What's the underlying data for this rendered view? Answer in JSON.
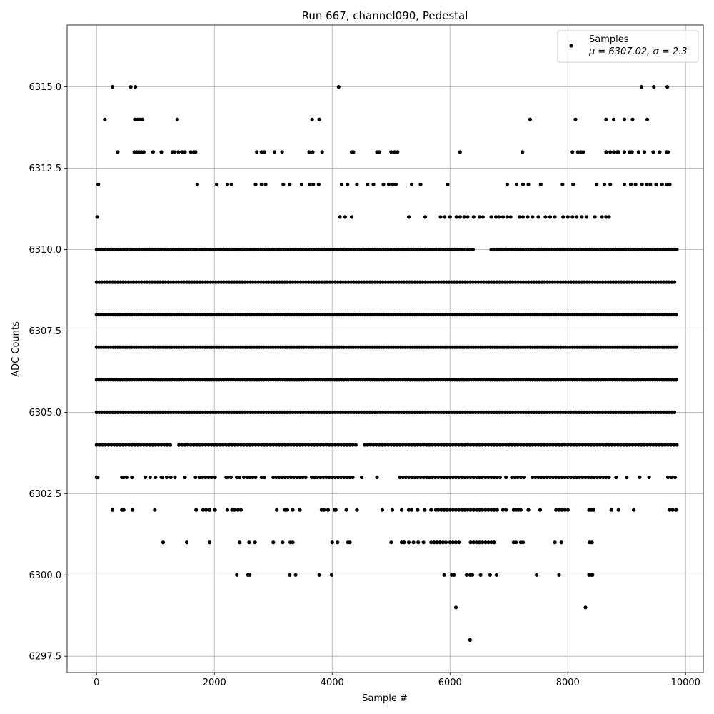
{
  "chart_data": {
    "type": "scatter",
    "title": "Run 667, channel090, Pedestal",
    "xlabel": "Sample #",
    "ylabel": "ADC Counts",
    "xlim": [
      -500,
      10300
    ],
    "ylim": [
      6297.0,
      6316.9
    ],
    "x_ticks": [
      0,
      2000,
      4000,
      6000,
      8000,
      10000
    ],
    "x_tick_labels": [
      "0",
      "2000",
      "4000",
      "6000",
      "8000",
      "10000"
    ],
    "y_ticks": [
      6297.5,
      6300.0,
      6302.5,
      6305.0,
      6307.5,
      6310.0,
      6312.5,
      6315.0
    ],
    "y_tick_labels": [
      "6297.5",
      "6300.0",
      "6302.5",
      "6305.0",
      "6307.5",
      "6310.0",
      "6312.5",
      "6315.0"
    ],
    "grid": true,
    "legend_position": "top-right",
    "point_color": "#000000",
    "series": [
      {
        "name": "Samples",
        "legend_note": "μ = 6307.02, σ = 2.3",
        "levels": [
          {
            "y": 6315,
            "x": [
              270,
              580,
              660,
              4110,
              9250,
              9460,
              9690
            ]
          },
          {
            "y": 6314,
            "x": [
              140,
              650,
              700,
              740,
              780,
              1370,
              3660,
              3780,
              7360,
              8130,
              8650,
              8780,
              8960,
              9100,
              9350
            ]
          },
          {
            "y": 6313,
            "x": [
              360,
              640,
              680,
              720,
              760,
              800,
              960,
              1100,
              1290,
              1320,
              1390,
              1450,
              1500,
              1600,
              1650,
              1680,
              2720,
              2800,
              2850,
              3020,
              3150,
              3610,
              3670,
              3830,
              4330,
              4360,
              4760,
              4800,
              5000,
              5060,
              5110,
              6170,
              7230,
              8080,
              8170,
              8220,
              8260,
              8650,
              8720,
              8780,
              8840,
              8860,
              8960,
              9050,
              9090,
              9200,
              9300,
              9450,
              9560,
              9680,
              9700
            ]
          },
          {
            "y": 6312,
            "x": [
              30,
              1710,
              2040,
              2220,
              2290,
              2700,
              2800,
              2870,
              3170,
              3280,
              3480,
              3620,
              3680,
              3770,
              4160,
              4260,
              4420,
              4600,
              4700,
              4870,
              4960,
              5030,
              5080,
              5350,
              5500,
              5960,
              6970,
              7130,
              7240,
              7330,
              7540,
              7910,
              8090,
              8490,
              8620,
              8720,
              8960,
              9070,
              9150,
              9260,
              9340,
              9400,
              9500,
              9600,
              9680,
              9730
            ]
          },
          {
            "y": 6311,
            "x": [
              10,
              4130,
              4220,
              4330,
              5300,
              5580,
              5840,
              5910,
              6000,
              6110,
              6170,
              6240,
              6300,
              6400,
              6500,
              6560,
              6700,
              6780,
              6830,
              6900,
              6970,
              7030,
              7180,
              7240,
              7320,
              7400,
              7500,
              7620,
              7700,
              7780,
              7920,
              8000,
              8080,
              8150,
              8240,
              8320,
              8460,
              8580,
              8650,
              8700
            ]
          },
          {
            "y": 6310,
            "segments": [
              [
                0,
                6400
              ],
              [
                6700,
                9850
              ]
            ],
            "step": 45
          },
          {
            "y": 6309,
            "segments": [
              [
                0,
                9850
              ]
            ],
            "step": 45
          },
          {
            "y": 6308,
            "segments": [
              [
                0,
                9850
              ]
            ],
            "step": 40
          },
          {
            "y": 6307,
            "segments": [
              [
                0,
                9850
              ]
            ],
            "step": 40
          },
          {
            "y": 6306,
            "segments": [
              [
                0,
                9850
              ]
            ],
            "step": 40
          },
          {
            "y": 6305,
            "segments": [
              [
                0,
                9850
              ]
            ],
            "step": 45
          },
          {
            "y": 6304,
            "segments": [
              [
                0,
                1250
              ],
              [
                1400,
                4400
              ],
              [
                4550,
                9850
              ]
            ],
            "step": 50
          },
          {
            "y": 6303,
            "x": [
              0,
              20,
              430,
              460,
              510,
              600,
              830,
              910,
              1000,
              1100,
              1120,
              1190,
              1260,
              1330,
              1500,
              1680,
              1750,
              1800,
              1850,
              1900,
              1950,
              2010,
              2200,
              2230,
              2280,
              2380,
              2430,
              2500,
              2560,
              2600,
              2650,
              2700,
              2800,
              2850,
              3000,
              3050,
              3100,
              3150,
              3200,
              3250,
              3300,
              3350,
              3400,
              3450,
              3500,
              3550,
              3650,
              3700,
              3750,
              3800,
              3850,
              3900,
              3950,
              4000,
              4050,
              4100,
              4150,
              4200,
              4250,
              4300,
              4350,
              4500,
              4760,
              5150,
              5200,
              5250,
              5300,
              5350,
              5400,
              5450,
              5500,
              5550,
              5600,
              5650,
              5700,
              5750,
              5800,
              5850,
              5900,
              5950,
              6000,
              6050,
              6100,
              6150,
              6200,
              6250,
              6300,
              6350,
              6400,
              6450,
              6500,
              6550,
              6600,
              6650,
              6700,
              6750,
              6800,
              6850,
              6950,
              7050,
              7100,
              7150,
              7200,
              7250,
              7400,
              7450,
              7500,
              7550,
              7600,
              7650,
              7700,
              7750,
              7800,
              7850,
              7900,
              7950,
              8000,
              8050,
              8100,
              8150,
              8200,
              8250,
              8300,
              8350,
              8400,
              8450,
              8500,
              8550,
              8600,
              8650,
              8700,
              8820,
              9000,
              9220,
              9380,
              9700,
              9760,
              9820
            ]
          },
          {
            "y": 6302,
            "x": [
              270,
              430,
              460,
              610,
              990,
              1690,
              1810,
              1860,
              1920,
              2010,
              2220,
              2300,
              2340,
              2400,
              2450,
              3060,
              3200,
              3240,
              3330,
              3450,
              3820,
              3860,
              3930,
              4040,
              4060,
              4240,
              4420,
              4850,
              5020,
              5180,
              5300,
              5350,
              5450,
              5570,
              5680,
              5760,
              5800,
              5850,
              5900,
              5950,
              6000,
              6050,
              6100,
              6150,
              6200,
              6250,
              6300,
              6350,
              6400,
              6450,
              6500,
              6550,
              6600,
              6650,
              6700,
              6750,
              6800,
              6900,
              6950,
              7080,
              7120,
              7160,
              7200,
              7330,
              7530,
              7800,
              7850,
              7900,
              7950,
              8000,
              8360,
              8400,
              8440,
              8740,
              8860,
              9120,
              9730,
              9780,
              9840
            ]
          },
          {
            "y": 6301,
            "x": [
              1130,
              1530,
              1920,
              2430,
              2590,
              2690,
              3000,
              3160,
              3290,
              3330,
              4000,
              4090,
              4270,
              4300,
              5000,
              5180,
              5220,
              5300,
              5380,
              5460,
              5550,
              5680,
              5730,
              5780,
              5830,
              5880,
              5930,
              6000,
              6050,
              6100,
              6150,
              6350,
              6400,
              6450,
              6500,
              6550,
              6600,
              6650,
              6700,
              6750,
              7080,
              7120,
              7200,
              7240,
              7780,
              7890,
              8370,
              8410
            ]
          },
          {
            "y": 6300,
            "x": [
              2380,
              2570,
              2600,
              3280,
              3380,
              3780,
              3990,
              5900,
              6030,
              6070,
              6280,
              6340,
              6380,
              6520,
              6680,
              6790,
              7470,
              7850,
              8360,
              8400,
              8420
            ]
          },
          {
            "y": 6299,
            "x": [
              6100,
              8300
            ]
          },
          {
            "y": 6298,
            "x": [
              6340
            ]
          }
        ]
      }
    ]
  }
}
